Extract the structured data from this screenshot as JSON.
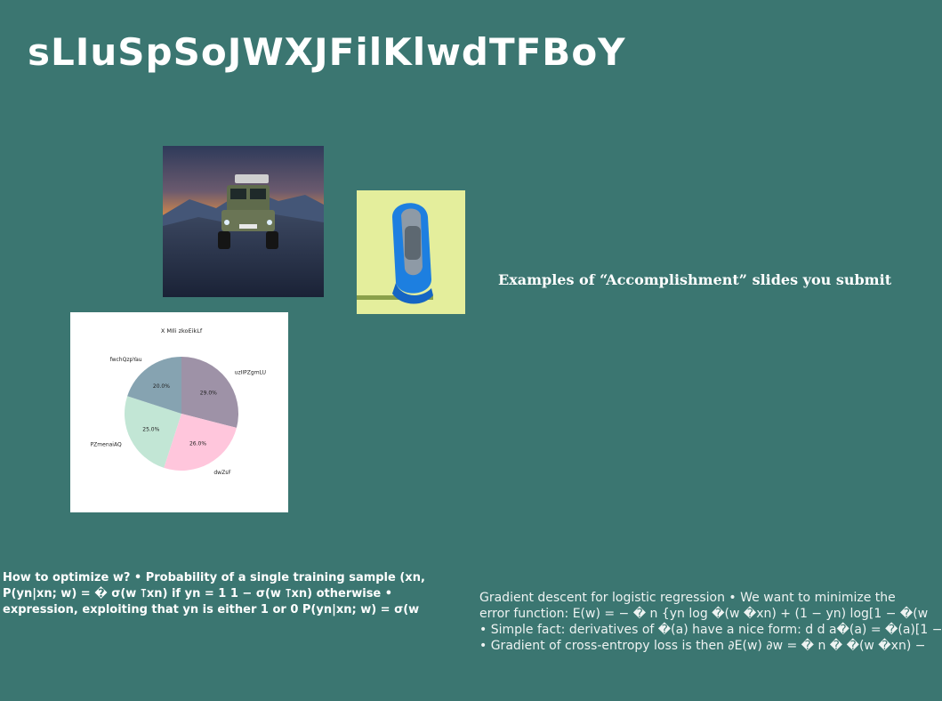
{
  "slide": {
    "title": "sLIuSpSoJWXJFilKlwdTFBoY",
    "caption": "Examples of “Accomplishment” slides you submit"
  },
  "images": {
    "vehicle": "land-rover-photo",
    "watch": "blue-watch-photo"
  },
  "colors": {
    "background": "#3b7671",
    "slice_colors": [
      "#9e92a7",
      "#ffc6dc",
      "#c2e6d5",
      "#86a3b1"
    ]
  },
  "chart_data": {
    "type": "pie",
    "title": "X MIli zkoEikLf",
    "labels": [
      "uzIIPZgmLU",
      "dwZsF",
      "PZmenaiAQ",
      "fwchQzpYau"
    ],
    "values": [
      29.0,
      26.0,
      25.0,
      20.0
    ],
    "value_labels": [
      "29.0%",
      "26.0%",
      "25.0%",
      "20.0%"
    ],
    "start_angle_deg": 90,
    "direction": "clockwise"
  },
  "text_left": {
    "lines": [
      "How to optimize w? • Probability of a single training sample (xn,",
      "P(yn|xn; w) = � σ(w ⊺xn) if yn = 1 1 − σ(w ⊺xn) otherwise •",
      "expression, exploiting that yn is either 1 or 0 P(yn|xn; w) = σ(w"
    ]
  },
  "text_right": {
    "lines": [
      "Gradient descent for logistic regression • We want to minimize the",
      "error function: E(w) = − � n {yn log �(w �xn) + (1 − yn) log[1 − �(w",
      "• Simple fact: derivatives of �(a) have a nice form: d d a�(a) = �(a)[1 −",
      "• Gradient of cross-entropy loss is then ∂E(w) ∂w = � n � �(w �xn) −"
    ]
  }
}
